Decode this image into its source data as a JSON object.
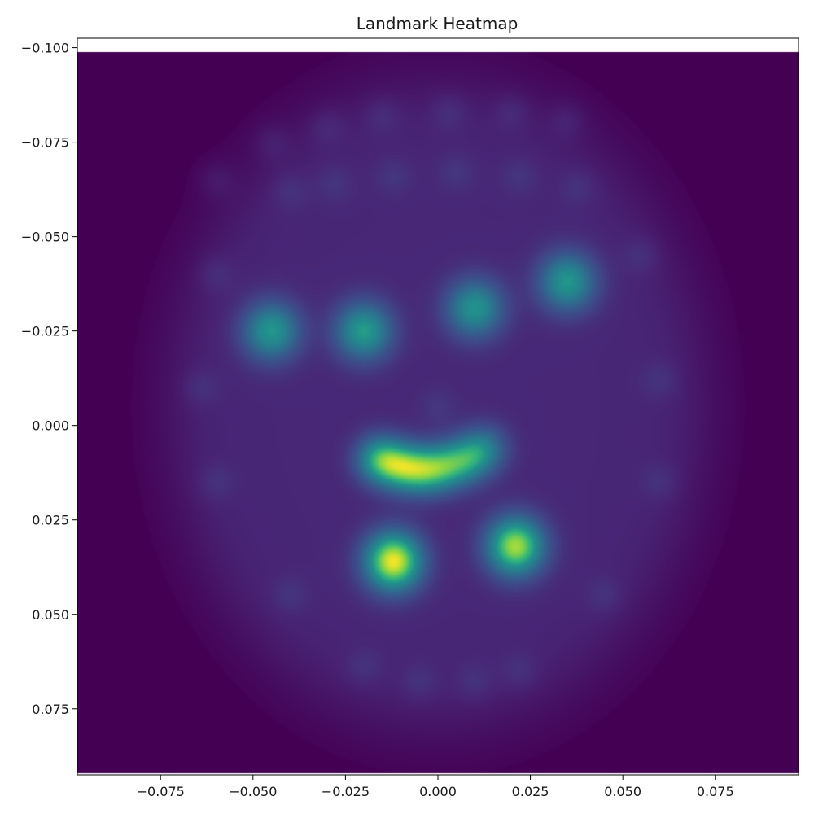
{
  "chart_data": {
    "type": "heatmap",
    "title": "Landmark Heatmap",
    "xlabel": "",
    "ylabel": "",
    "xlim": [
      -0.0975,
      0.0975
    ],
    "ylim": [
      0.0925,
      -0.1025
    ],
    "y_inverted": true,
    "xticks": [
      -0.075,
      -0.05,
      -0.025,
      0.0,
      0.025,
      0.05,
      0.075
    ],
    "xtick_labels": [
      "−0.075",
      "−0.050",
      "−0.025",
      "0.000",
      "0.025",
      "0.050",
      "0.075"
    ],
    "yticks": [
      -0.1,
      -0.075,
      -0.05,
      -0.025,
      0.0,
      0.025,
      0.05,
      0.075
    ],
    "ytick_labels": [
      "−0.100",
      "−0.075",
      "−0.050",
      "−0.025",
      "0.000",
      "0.025",
      "0.050",
      "0.075"
    ],
    "image_extent": {
      "x": [
        -0.0975,
        0.0975
      ],
      "y": [
        -0.099,
        0.092
      ]
    },
    "colormap": "viridis",
    "background_color": "#440154",
    "grid": false,
    "face_envelope": {
      "center": [
        0.0,
        -0.005
      ],
      "radius_x": 0.072,
      "radius_y": 0.085,
      "intensity": 0.14
    },
    "hotspots": [
      {
        "x": -0.045,
        "y": -0.025,
        "intensity": 0.6
      },
      {
        "x": -0.02,
        "y": -0.025,
        "intensity": 0.62
      },
      {
        "x": 0.01,
        "y": -0.031,
        "intensity": 0.58
      },
      {
        "x": 0.035,
        "y": -0.038,
        "intensity": 0.6
      },
      {
        "x": -0.012,
        "y": 0.036,
        "intensity": 1.0
      },
      {
        "x": 0.021,
        "y": 0.032,
        "intensity": 0.9
      }
    ],
    "mouth_arc": [
      {
        "x": -0.016,
        "y": 0.009,
        "intensity": 0.92
      },
      {
        "x": -0.01,
        "y": 0.011,
        "intensity": 0.85
      },
      {
        "x": -0.004,
        "y": 0.012,
        "intensity": 0.8
      },
      {
        "x": 0.002,
        "y": 0.011,
        "intensity": 0.72
      },
      {
        "x": 0.008,
        "y": 0.009,
        "intensity": 0.66
      },
      {
        "x": 0.013,
        "y": 0.006,
        "intensity": 0.55
      }
    ],
    "faint_spots": [
      {
        "x": -0.06,
        "y": -0.065
      },
      {
        "x": -0.045,
        "y": -0.075
      },
      {
        "x": -0.03,
        "y": -0.079
      },
      {
        "x": -0.015,
        "y": -0.082
      },
      {
        "x": 0.003,
        "y": -0.083
      },
      {
        "x": 0.02,
        "y": -0.083
      },
      {
        "x": 0.035,
        "y": -0.081
      },
      {
        "x": -0.04,
        "y": -0.062
      },
      {
        "x": -0.028,
        "y": -0.064
      },
      {
        "x": -0.012,
        "y": -0.066
      },
      {
        "x": 0.005,
        "y": -0.067
      },
      {
        "x": 0.022,
        "y": -0.066
      },
      {
        "x": 0.038,
        "y": -0.063
      },
      {
        "x": -0.06,
        "y": -0.04
      },
      {
        "x": -0.064,
        "y": -0.01
      },
      {
        "x": -0.06,
        "y": 0.015
      },
      {
        "x": 0.055,
        "y": -0.045
      },
      {
        "x": 0.06,
        "y": -0.012
      },
      {
        "x": 0.06,
        "y": 0.015
      },
      {
        "x": -0.04,
        "y": 0.045
      },
      {
        "x": 0.045,
        "y": 0.045
      },
      {
        "x": -0.005,
        "y": 0.068
      },
      {
        "x": 0.01,
        "y": 0.068
      },
      {
        "x": 0.022,
        "y": 0.065
      },
      {
        "x": -0.02,
        "y": 0.064
      },
      {
        "x": 0.0,
        "y": -0.005
      }
    ]
  }
}
